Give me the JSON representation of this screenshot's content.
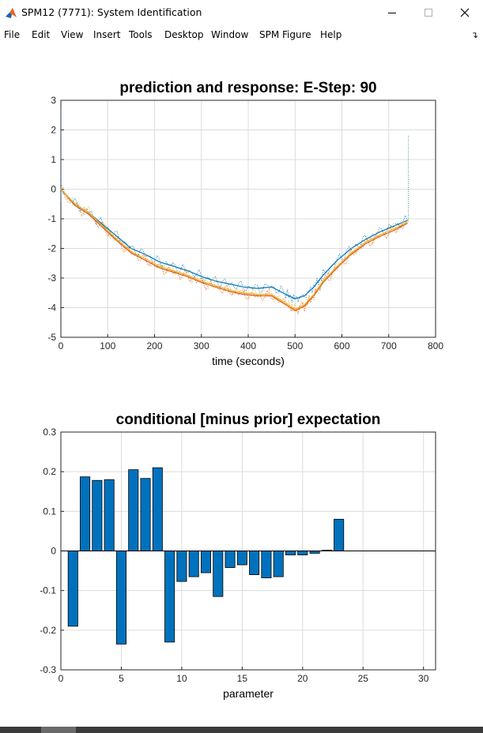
{
  "window": {
    "title": "SPM12 (7771): System Identification",
    "minimize_icon": "minimize-icon",
    "maximize_icon": "maximize-icon",
    "close_icon": "close-icon"
  },
  "menu": [
    "File",
    "Edit",
    "View",
    "Insert",
    "Tools",
    "Desktop",
    "Window",
    "SPM Figure",
    "Help"
  ],
  "menu_arrow_icon": "dock-arrow-icon",
  "colors": {
    "series_blue": "#0072BD",
    "series_orange": "#D95319",
    "series_yellow": "#EDB120",
    "bar_fill": "#0072BD",
    "grid": "#dcdcdc",
    "axis": "#262626"
  },
  "chart_data": [
    {
      "type": "line",
      "title": "prediction and response: E-Step: 90",
      "xlabel": "time (seconds)",
      "ylabel": "",
      "xlim": [
        0,
        800
      ],
      "ylim": [
        -5,
        3
      ],
      "xticks": [
        0,
        100,
        200,
        300,
        400,
        500,
        600,
        700,
        800
      ],
      "yticks": [
        -5,
        -4,
        -3,
        -2,
        -1,
        0,
        1,
        2,
        3
      ],
      "grid": true,
      "series": [
        {
          "color": "#0072BD",
          "x": [
            0,
            30,
            60,
            90,
            120,
            150,
            180,
            210,
            240,
            270,
            300,
            330,
            360,
            390,
            420,
            450,
            480,
            500,
            520,
            540,
            560,
            590,
            620,
            650,
            680,
            710,
            740
          ],
          "y": [
            0,
            -0.5,
            -0.8,
            -1.2,
            -1.6,
            -2.0,
            -2.2,
            -2.45,
            -2.6,
            -2.75,
            -2.95,
            -3.1,
            -3.2,
            -3.3,
            -3.35,
            -3.3,
            -3.55,
            -3.7,
            -3.6,
            -3.3,
            -2.9,
            -2.4,
            -2.0,
            -1.7,
            -1.45,
            -1.25,
            -1.05
          ]
        },
        {
          "color": "#D95319",
          "x": [
            0,
            30,
            60,
            90,
            120,
            150,
            180,
            210,
            240,
            270,
            300,
            330,
            360,
            390,
            420,
            450,
            480,
            500,
            520,
            540,
            560,
            590,
            620,
            650,
            680,
            710,
            740
          ],
          "y": [
            0,
            -0.55,
            -0.85,
            -1.3,
            -1.75,
            -2.15,
            -2.4,
            -2.65,
            -2.8,
            -2.95,
            -3.15,
            -3.3,
            -3.45,
            -3.55,
            -3.6,
            -3.6,
            -3.9,
            -4.1,
            -3.95,
            -3.6,
            -3.15,
            -2.65,
            -2.2,
            -1.85,
            -1.6,
            -1.4,
            -1.15
          ]
        },
        {
          "color": "#EDB120",
          "x": [
            0,
            30,
            60,
            90,
            120,
            150,
            180,
            210,
            240,
            270,
            300,
            330,
            360,
            390,
            420,
            450,
            480,
            500,
            520,
            540,
            560,
            590,
            620,
            650,
            680,
            710,
            740
          ],
          "y": [
            0,
            -0.5,
            -0.8,
            -1.25,
            -1.7,
            -2.1,
            -2.35,
            -2.6,
            -2.75,
            -2.9,
            -3.1,
            -3.25,
            -3.4,
            -3.5,
            -3.55,
            -3.55,
            -3.85,
            -4.05,
            -3.9,
            -3.55,
            -3.1,
            -2.6,
            -2.15,
            -1.8,
            -1.55,
            -1.35,
            -1.1
          ]
        }
      ]
    },
    {
      "type": "bar",
      "title": "conditional [minus prior] expectation",
      "xlabel": "parameter",
      "ylabel": "",
      "xlim": [
        0,
        31
      ],
      "ylim": [
        -0.3,
        0.3
      ],
      "xticks": [
        0,
        5,
        10,
        15,
        20,
        25,
        30
      ],
      "yticks": [
        -0.3,
        -0.2,
        -0.1,
        0,
        0.1,
        0.2,
        0.3
      ],
      "ytick_labels": [
        "-0.3",
        "-0.2",
        "-0.1",
        "0",
        "0.1",
        "0.2",
        "0.3"
      ],
      "grid": true,
      "categories": [
        1,
        2,
        3,
        4,
        5,
        6,
        7,
        8,
        9,
        10,
        11,
        12,
        13,
        14,
        15,
        16,
        17,
        18,
        19,
        20,
        21,
        22,
        23
      ],
      "values": [
        -0.19,
        0.187,
        0.178,
        0.18,
        -0.235,
        0.205,
        0.183,
        0.21,
        -0.23,
        -0.077,
        -0.065,
        -0.055,
        -0.115,
        -0.042,
        -0.035,
        -0.06,
        -0.068,
        -0.065,
        -0.01,
        -0.01,
        -0.006,
        0.002,
        0.08
      ]
    }
  ]
}
